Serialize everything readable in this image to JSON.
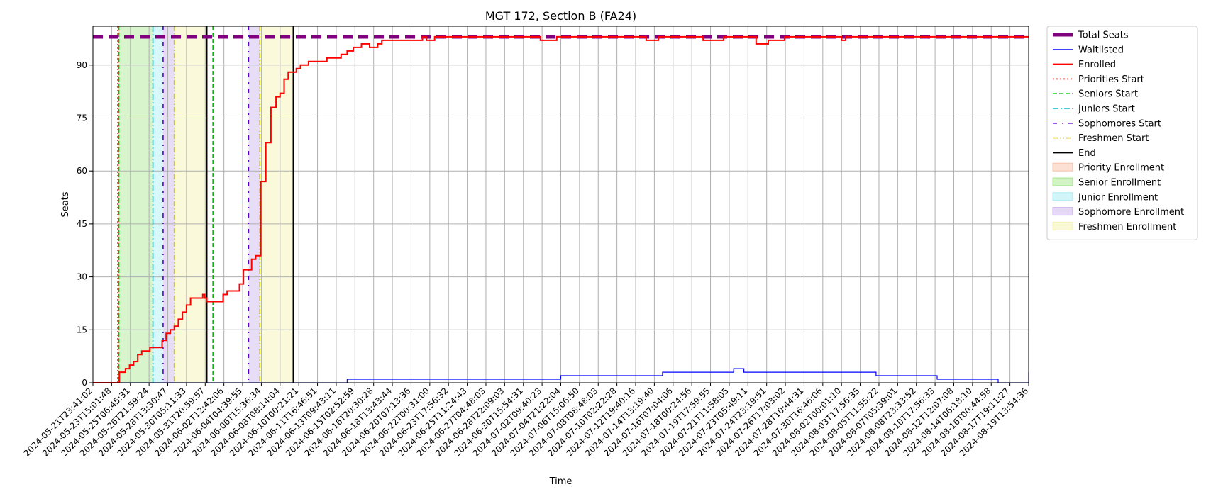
{
  "chart_data": {
    "type": "line",
    "title": "MGT 172, Section B (FA24)",
    "xlabel": "Time",
    "ylabel": "Seats",
    "ylim": [
      0,
      101
    ],
    "yticks": [
      0,
      15,
      30,
      45,
      60,
      75,
      90
    ],
    "x_index_range": [
      0,
      92
    ],
    "x_tick_labels": [
      "2024-05-21T23:41:02",
      "2024-05-23T15:01:48",
      "2024-05-25T06:45:31",
      "2024-05-26T21:59:24",
      "2024-05-28T13:30:47",
      "2024-05-30T05:11:33",
      "2024-05-31T20:59:57",
      "2024-06-02T12:42:06",
      "2024-06-04T04:39:55",
      "2024-06-06T15:36:34",
      "2024-06-08T08:14:04",
      "2024-06-10T00:21:21",
      "2024-06-11T16:46:51",
      "2024-06-13T09:43:11",
      "2024-06-15T02:52:59",
      "2024-06-16T20:30:28",
      "2024-06-18T13:43:44",
      "2024-06-20T07:13:36",
      "2024-06-22T00:31:00",
      "2024-06-23T17:56:32",
      "2024-06-25T11:24:43",
      "2024-06-27T04:48:03",
      "2024-06-28T22:09:03",
      "2024-06-30T15:54:31",
      "2024-07-02T09:40:23",
      "2024-07-04T21:22:04",
      "2024-07-06T15:06:50",
      "2024-07-08T08:48:03",
      "2024-07-10T02:22:28",
      "2024-07-12T19:40:16",
      "2024-07-14T13:19:40",
      "2024-07-16T07:04:06",
      "2024-07-18T00:24:56",
      "2024-07-19T17:59:55",
      "2024-07-21T11:58:05",
      "2024-07-23T05:49:11",
      "2024-07-24T23:19:51",
      "2024-07-26T17:03:02",
      "2024-07-28T10:44:31",
      "2024-07-30T16:46:06",
      "2024-08-02T00:01:10",
      "2024-08-03T17:56:35",
      "2024-08-05T11:55:22",
      "2024-08-07T05:39:01",
      "2024-08-08T23:33:52",
      "2024-08-10T17:56:33",
      "2024-08-12T12:07:08",
      "2024-08-14T06:18:10",
      "2024-08-16T00:44:58",
      "2024-08-17T19:11:27",
      "2024-08-19T13:54:36"
    ],
    "total_seats": 98,
    "series": [
      {
        "name": "Total Seats",
        "color": "#800080",
        "style": "dashed-thick"
      },
      {
        "name": "Waitlisted",
        "color": "#0000ff",
        "style": "solid-thin",
        "x": [
          0,
          25,
          25,
          26,
          27,
          27,
          46,
          46,
          56,
          56,
          63,
          63,
          64,
          64,
          77,
          77,
          83,
          83,
          89,
          89,
          92,
          92
        ],
        "y": [
          0,
          0,
          1,
          1,
          1,
          1,
          1,
          2,
          2,
          3,
          3,
          4,
          4,
          3,
          3,
          2,
          2,
          1,
          1,
          0,
          0,
          3
        ]
      },
      {
        "name": "Enrolled",
        "color": "#ff0000",
        "style": "solid",
        "x": [
          0,
          2.4,
          2.6,
          3.2,
          3.6,
          4.0,
          4.4,
          4.8,
          5.2,
          5.6,
          6.4,
          6.8,
          7.2,
          7.6,
          8.0,
          8.4,
          8.8,
          9.2,
          9.6,
          10.0,
          10.8,
          11.0,
          11.2,
          11.6,
          12.0,
          12.4,
          12.8,
          13.2,
          13.6,
          14.0,
          14.4,
          14.8,
          15.6,
          16.0,
          16.5,
          17.0,
          17.5,
          18.0,
          18.4,
          18.8,
          19.2,
          20.0,
          20.4,
          21.2,
          21.6,
          22.0,
          22.4,
          23.0,
          23.4,
          24.4,
          25.0,
          25.6,
          26.4,
          27.2,
          28.0,
          28.4,
          29.6,
          31.2,
          32.4,
          32.8,
          33.6,
          34.4,
          35.2,
          36.4,
          37.2,
          38.4,
          40.0,
          41.2,
          42.4,
          44.0,
          45.6,
          46.0,
          47.6,
          48.8,
          50.0,
          52.0,
          53.6,
          54.4,
          55.6,
          57.2,
          58.4,
          60.0,
          62.0,
          64.0,
          65.2,
          66.4,
          68.0,
          69.2,
          70.4,
          72.0,
          73.6,
          74.0,
          75.0,
          76.4,
          77.6,
          78.4,
          80.0,
          81.2,
          82.0,
          82.4,
          83.2,
          84.0,
          85.6,
          86.8,
          88.0,
          89.2,
          90.4,
          92.0
        ],
        "y": [
          0,
          0,
          3,
          4,
          5,
          6,
          8,
          9,
          9,
          10,
          10,
          12,
          14,
          15,
          16,
          18,
          20,
          22,
          24,
          24,
          25,
          24,
          23,
          23,
          23,
          23,
          25,
          26,
          26,
          26,
          28,
          32,
          35,
          36,
          57,
          68,
          78,
          81,
          82,
          86,
          88,
          89,
          90,
          91,
          91,
          91,
          91,
          92,
          92,
          93,
          94,
          95,
          96,
          95,
          96,
          97,
          97,
          97,
          98,
          97,
          98,
          98,
          98,
          98,
          98,
          98,
          98,
          98,
          98,
          97,
          98,
          98,
          98,
          98,
          98,
          98,
          98,
          97,
          98,
          98,
          98,
          97,
          98,
          98,
          96,
          97,
          98,
          98,
          98,
          98,
          97,
          98,
          98,
          98,
          98,
          98,
          98,
          98,
          98,
          98,
          98,
          98,
          98,
          98,
          98,
          98,
          98,
          98
        ]
      }
    ],
    "phase_lines": [
      {
        "name": "Priorities Start",
        "color": "#ff0000",
        "style": "dotted",
        "x": 2.45
      },
      {
        "name": "Seniors Start",
        "color": "#00bb00",
        "style": "dashed",
        "x": 2.55
      },
      {
        "name": "Juniors Start",
        "color": "#00bcd4",
        "style": "dashdot",
        "x": 5.9
      },
      {
        "name": "Sophomores Start",
        "color": "#5500cc",
        "style": "loosedashdot",
        "x": 6.9
      },
      {
        "name": "Sophomores Start",
        "color": "#5500cc",
        "style": "loosedashdot",
        "x": 15.3
      },
      {
        "name": "Freshmen Start",
        "color": "#cccc00",
        "style": "dashdotdot",
        "x": 8.0
      },
      {
        "name": "Freshmen Start",
        "color": "#cccc00",
        "style": "dashdotdot",
        "x": 16.4
      },
      {
        "name": "End",
        "color": "#000000",
        "style": "solid",
        "x": 11.2
      },
      {
        "name": "End",
        "color": "#000000",
        "style": "solid",
        "x": 19.7
      },
      {
        "name": "Seniors Start",
        "color": "#00bb00",
        "style": "dashed",
        "x": 11.8
      }
    ],
    "shaded_regions": [
      {
        "name": "Priority Enrollment",
        "color": "#f4a582",
        "from": 2.45,
        "to": 2.55
      },
      {
        "name": "Senior Enrollment",
        "color": "#7bdc5a",
        "from": 2.55,
        "to": 5.9
      },
      {
        "name": "Junior Enrollment",
        "color": "#7de3ee",
        "from": 5.9,
        "to": 6.9
      },
      {
        "name": "Sophomore Enrollment",
        "color": "#b48ee6",
        "from": 6.9,
        "to": 8.0
      },
      {
        "name": "Freshmen Enrollment",
        "color": "#eeee88",
        "from": 8.0,
        "to": 11.2
      },
      {
        "name": "Sophomore Enrollment",
        "color": "#b48ee6",
        "from": 15.3,
        "to": 16.4
      },
      {
        "name": "Freshmen Enrollment",
        "color": "#eeee88",
        "from": 16.4,
        "to": 19.7
      }
    ],
    "legend": {
      "placement": "outside-right-top",
      "entries": [
        {
          "label": "Total Seats",
          "kind": "line",
          "color": "#800080",
          "style": "dashed-thick"
        },
        {
          "label": "Waitlisted",
          "kind": "line",
          "color": "#0000ff",
          "style": "solid-thin"
        },
        {
          "label": "Enrolled",
          "kind": "line",
          "color": "#ff0000",
          "style": "solid"
        },
        {
          "label": "Priorities Start",
          "kind": "line",
          "color": "#ff0000",
          "style": "dotted"
        },
        {
          "label": "Seniors Start",
          "kind": "line",
          "color": "#00bb00",
          "style": "dashed"
        },
        {
          "label": "Juniors Start",
          "kind": "line",
          "color": "#00bcd4",
          "style": "dashdot"
        },
        {
          "label": "Sophomores Start",
          "kind": "line",
          "color": "#5500cc",
          "style": "loosedashdot"
        },
        {
          "label": "Freshmen Start",
          "kind": "line",
          "color": "#cccc00",
          "style": "dashdotdot"
        },
        {
          "label": "End",
          "kind": "line",
          "color": "#000000",
          "style": "solid"
        },
        {
          "label": "Priority Enrollment",
          "kind": "patch",
          "color": "#f4a582"
        },
        {
          "label": "Senior Enrollment",
          "kind": "patch",
          "color": "#7bdc5a"
        },
        {
          "label": "Junior Enrollment",
          "kind": "patch",
          "color": "#7de3ee"
        },
        {
          "label": "Sophomore Enrollment",
          "kind": "patch",
          "color": "#b48ee6"
        },
        {
          "label": "Freshmen Enrollment",
          "kind": "patch",
          "color": "#eeee88"
        }
      ]
    }
  }
}
